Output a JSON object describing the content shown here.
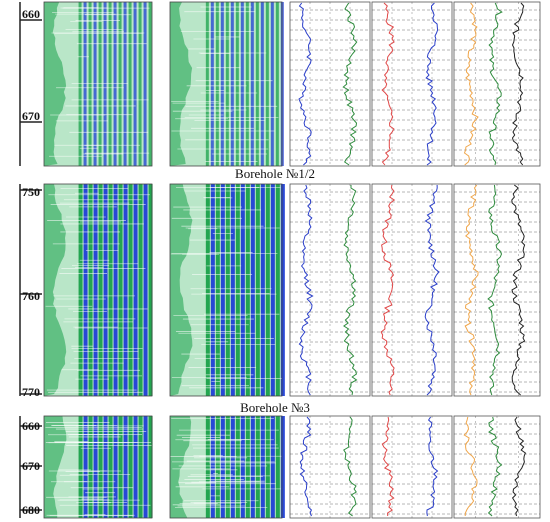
{
  "panels": [
    {
      "id": "top",
      "depth_labels": [
        "660",
        "670"
      ],
      "caption": ""
    },
    {
      "id": "middle",
      "depth_labels": [
        "750",
        "760",
        "770"
      ],
      "caption": "Borehole №1/2"
    },
    {
      "id": "bottom",
      "depth_labels": [
        "660",
        "670",
        "680"
      ],
      "caption": "Borehole №3"
    }
  ],
  "colors": {
    "image_green": "#1aa14a",
    "image_blue": "#1f3fd6",
    "image_light": "#b9e6c8",
    "curve_blue": "#2b3fc9",
    "curve_green": "#2e8b3d",
    "curve_red": "#e04848",
    "curve_orange": "#f0a64a",
    "curve_black": "#222222",
    "grid": "#333333"
  },
  "captions": {
    "borehole_1_2": "Borehole №1/2",
    "borehole_3": "Borehole №3"
  }
}
